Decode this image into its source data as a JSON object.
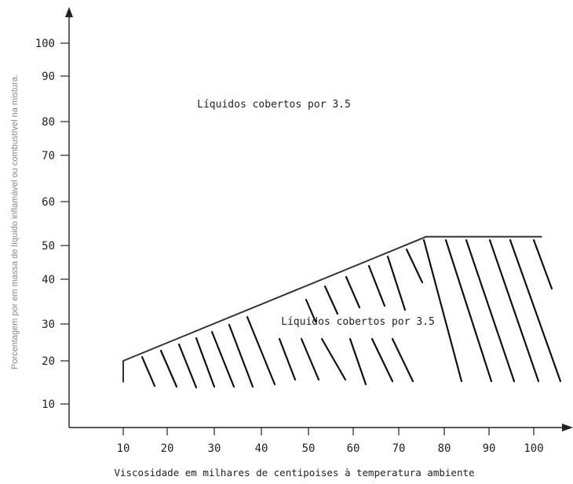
{
  "chart_data": {
    "type": "area",
    "xlabel": "Viscosidade em milhares de centipoises à temperatura ambiente",
    "ylabel": "Porcentagem por em massa de líquido inflamável ou combustível na mistura.",
    "x_ticks": [
      10,
      20,
      30,
      40,
      50,
      60,
      70,
      80,
      90,
      100
    ],
    "y_ticks": [
      10,
      20,
      30,
      40,
      50,
      60,
      70,
      80,
      90,
      100
    ],
    "boundary": {
      "x": [
        10,
        10,
        76,
        102
      ],
      "y": [
        15,
        20,
        52,
        52
      ]
    },
    "hatched_region": "below boundary",
    "annotations": [
      {
        "text": "Líquidos cobertos por 3.5",
        "x": 38,
        "y": 75
      },
      {
        "text": "Líquidos cobertos por 3.5",
        "x": 63,
        "y": 28
      }
    ],
    "grid": false,
    "legend": "none"
  }
}
